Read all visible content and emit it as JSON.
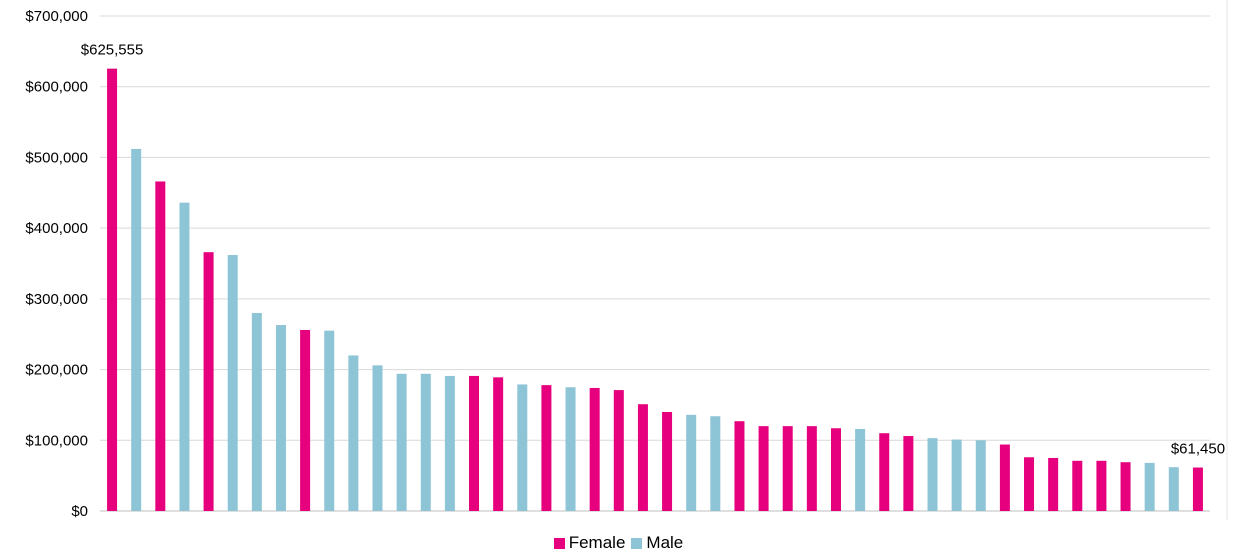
{
  "chart_data": {
    "type": "bar",
    "ylim": [
      0,
      700000
    ],
    "yticks": [
      "$0",
      "$100,000",
      "$200,000",
      "$300,000",
      "$400,000",
      "$500,000",
      "$600,000",
      "$700,000"
    ],
    "grid": true,
    "legend_position": "bottom",
    "legend": [
      {
        "label": "Female",
        "color": "#E6007E"
      },
      {
        "label": "Male",
        "color": "#8EC5D6"
      }
    ],
    "values": [
      625555,
      512000,
      466000,
      436000,
      366000,
      362000,
      280000,
      263000,
      256000,
      255000,
      220000,
      206000,
      194000,
      194000,
      191000,
      191000,
      189000,
      179000,
      178000,
      175000,
      174000,
      171000,
      151000,
      140000,
      136000,
      134000,
      127000,
      120000,
      120000,
      120000,
      117000,
      116000,
      110000,
      106000,
      103000,
      101000,
      100000,
      94000,
      76000,
      75000,
      71000,
      71000,
      69000,
      68000,
      62000,
      61450
    ],
    "genders": [
      "Female",
      "Male",
      "Female",
      "Male",
      "Female",
      "Male",
      "Male",
      "Male",
      "Female",
      "Male",
      "Male",
      "Male",
      "Male",
      "Male",
      "Male",
      "Female",
      "Female",
      "Male",
      "Female",
      "Male",
      "Female",
      "Female",
      "Female",
      "Female",
      "Male",
      "Male",
      "Female",
      "Female",
      "Female",
      "Female",
      "Female",
      "Male",
      "Female",
      "Female",
      "Male",
      "Male",
      "Male",
      "Female",
      "Female",
      "Female",
      "Female",
      "Female",
      "Female",
      "Male",
      "Male",
      "Female"
    ],
    "data_labels": [
      {
        "index": 0,
        "text": "$625,555"
      },
      {
        "index": 45,
        "text": "$61,450"
      }
    ]
  }
}
